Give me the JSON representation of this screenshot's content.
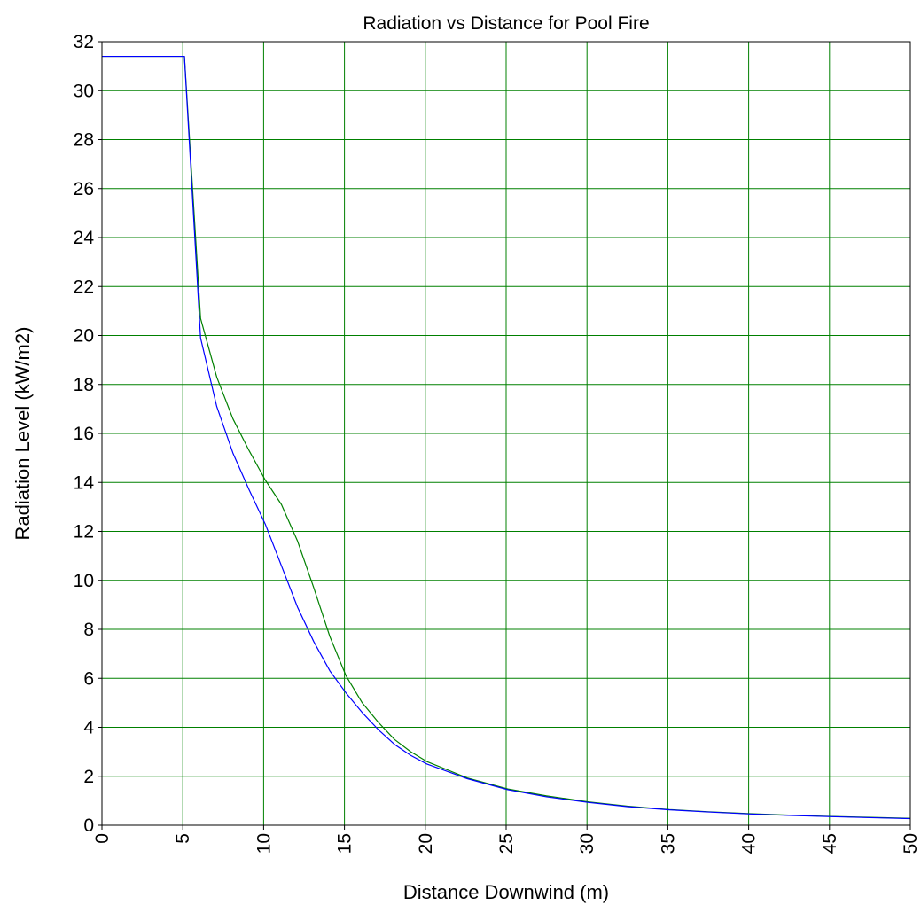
{
  "chart_data": {
    "type": "line",
    "title": "Radiation vs Distance for Pool Fire",
    "xlabel": "Distance Downwind (m)",
    "ylabel": "Radiation Level (kW/m2)",
    "xlim": [
      0,
      50
    ],
    "ylim": [
      0,
      32
    ],
    "xticks": [
      0,
      5,
      10,
      15,
      20,
      25,
      30,
      35,
      40,
      45,
      50
    ],
    "xtick_labels": [
      "0",
      "5",
      "10",
      "15",
      "20",
      "25",
      "30",
      "35",
      "40",
      "45",
      "50"
    ],
    "yticks": [
      0,
      2,
      4,
      6,
      8,
      10,
      12,
      14,
      16,
      18,
      20,
      22,
      24,
      26,
      28,
      30,
      32
    ],
    "ytick_labels": [
      "0",
      "2",
      "4",
      "6",
      "8",
      "10",
      "12",
      "14",
      "16",
      "18",
      "20",
      "22",
      "24",
      "26",
      "28",
      "30",
      "32"
    ],
    "grid": true,
    "grid_color": "#008000",
    "series": [
      {
        "color": "#008000",
        "x": [
          0,
          5,
          5.1,
          6.1,
          7.1,
          8.1,
          9.1,
          10.1,
          11.1,
          12.1,
          13.1,
          14.1,
          15.1,
          16.1,
          17.1,
          18.1,
          19.1,
          20.1,
          22.6,
          25.1,
          27.5,
          30.1,
          32.5,
          35.1,
          37.5,
          40.1,
          42.5,
          45.1,
          47.5,
          50
        ],
        "y": [
          31.4,
          31.4,
          31.4,
          20.7,
          18.3,
          16.6,
          15.3,
          14.1,
          13.1,
          11.6,
          9.7,
          7.7,
          6.1,
          5.0,
          4.2,
          3.5,
          3.0,
          2.6,
          1.93,
          1.48,
          1.2,
          0.95,
          0.78,
          0.64,
          0.55,
          0.47,
          0.41,
          0.36,
          0.32,
          0.28
        ]
      },
      {
        "color": "#0000ff",
        "x": [
          0,
          5,
          5.1,
          6.1,
          7.1,
          8.1,
          9.1,
          10.1,
          11.1,
          12.1,
          13.1,
          14.1,
          15.1,
          16.1,
          17.1,
          18.1,
          19.1,
          20.1,
          22.6,
          25.1,
          27.5,
          30.1,
          32.5,
          35.1,
          37.5,
          40.1,
          42.5,
          45.1,
          47.5,
          50
        ],
        "y": [
          31.4,
          31.4,
          31.4,
          19.9,
          17.1,
          15.2,
          13.7,
          12.3,
          10.6,
          8.9,
          7.5,
          6.3,
          5.4,
          4.6,
          3.9,
          3.3,
          2.85,
          2.5,
          1.9,
          1.45,
          1.16,
          0.93,
          0.76,
          0.63,
          0.54,
          0.46,
          0.4,
          0.35,
          0.31,
          0.27
        ]
      }
    ]
  }
}
